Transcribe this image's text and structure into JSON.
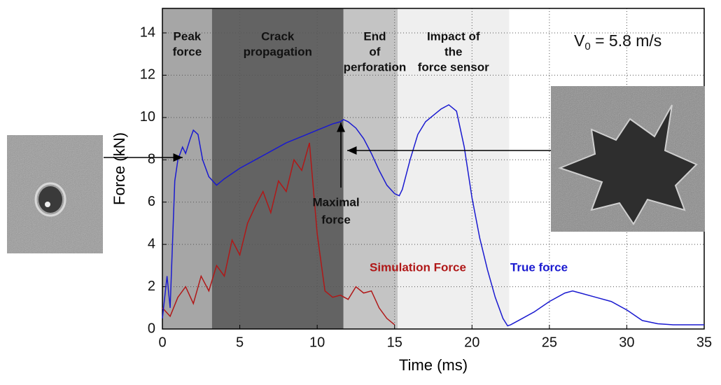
{
  "chart_data": {
    "type": "line",
    "x_label": "Time (ms)",
    "y_label": "Force (kN)",
    "xlim": [
      0,
      35
    ],
    "xticks": [
      0,
      5,
      10,
      15,
      20,
      25,
      30,
      35
    ],
    "ylim": [
      0,
      14
    ],
    "yticks": [
      0,
      2,
      4,
      6,
      8,
      10,
      12,
      14
    ],
    "grid": true,
    "regions": [
      {
        "start": 0,
        "end": 3.2,
        "color": "#a6a6a6",
        "label": [
          "Peak",
          "force"
        ]
      },
      {
        "start": 3.2,
        "end": 11.7,
        "color": "#636363",
        "label": [
          "Crack",
          "propagation"
        ]
      },
      {
        "start": 11.7,
        "end": 15.2,
        "color": "#c4c4c4",
        "label": [
          "End",
          "of",
          "perforation"
        ]
      },
      {
        "start": 15.2,
        "end": 22.4,
        "color": "#efefef",
        "label": [
          "Impact of",
          "the",
          "force sensor"
        ]
      }
    ],
    "velocity_label": {
      "symbol": "V",
      "subscript": "0",
      "rest": " = 5.8 m/s"
    },
    "annotation": [
      "Maximal",
      "force"
    ],
    "series": [
      {
        "name": "Simulation Force",
        "color": "#b01818",
        "x": [
          0,
          0.5,
          1,
          1.5,
          2,
          2.5,
          3,
          3.5,
          4,
          4.5,
          5,
          5.5,
          6,
          6.5,
          7,
          7.5,
          8,
          8.5,
          9,
          9.5,
          10,
          10.5,
          11,
          11.5,
          12,
          12.5,
          13,
          13.5,
          14,
          14.5,
          15
        ],
        "values": [
          1.0,
          0.6,
          1.5,
          2.0,
          1.2,
          2.5,
          1.8,
          3.0,
          2.5,
          4.2,
          3.5,
          5.0,
          5.8,
          6.5,
          5.5,
          7.0,
          6.5,
          8.0,
          7.5,
          8.8,
          4.5,
          1.8,
          1.5,
          1.6,
          1.4,
          2.0,
          1.7,
          1.8,
          1.0,
          0.5,
          0.2
        ]
      },
      {
        "name": "True force",
        "color": "#1a1ad0",
        "x": [
          0,
          0.3,
          0.5,
          0.8,
          1.0,
          1.3,
          1.5,
          1.8,
          2.0,
          2.3,
          2.6,
          3.0,
          3.5,
          4,
          5,
          6,
          7,
          8,
          9,
          10,
          11,
          11.5,
          11.7,
          12,
          12.5,
          13,
          13.5,
          14,
          14.5,
          15,
          15.3,
          15.5,
          16,
          16.5,
          17,
          17.5,
          18,
          18.5,
          19,
          19.5,
          20,
          20.5,
          21,
          21.5,
          22,
          22.3,
          22.5,
          23,
          24,
          25,
          26,
          26.5,
          27,
          28,
          29,
          30,
          31,
          32,
          33,
          34,
          35
        ],
        "values": [
          0.5,
          2.5,
          1.0,
          7.0,
          8.0,
          8.6,
          8.3,
          9.0,
          9.4,
          9.2,
          8.0,
          7.2,
          6.8,
          7.1,
          7.6,
          8.0,
          8.4,
          8.8,
          9.1,
          9.4,
          9.7,
          9.8,
          9.9,
          9.8,
          9.5,
          9.0,
          8.3,
          7.5,
          6.8,
          6.4,
          6.3,
          6.6,
          8.0,
          9.2,
          9.8,
          10.1,
          10.4,
          10.6,
          10.3,
          8.6,
          6.2,
          4.3,
          2.8,
          1.5,
          0.5,
          0.15,
          0.2,
          0.4,
          0.8,
          1.3,
          1.7,
          1.8,
          1.7,
          1.5,
          1.3,
          0.9,
          0.4,
          0.25,
          0.2,
          0.2,
          0.2
        ]
      }
    ]
  }
}
